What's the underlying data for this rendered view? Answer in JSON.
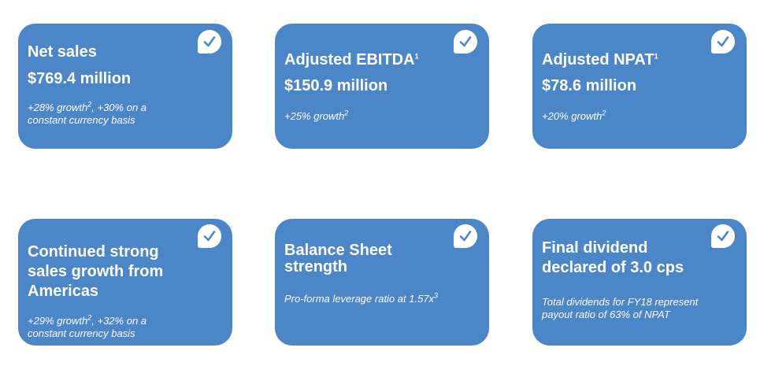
{
  "cards": [
    {
      "title": "Net sales",
      "value": "$769.4 million",
      "note_line1": "+28% growth",
      "note_line1_sup": "2",
      "note_line1_tail": ", +30% on a",
      "note_line2": "constant currency basis"
    },
    {
      "title": "Adjusted EBITDA",
      "title_sup": "1",
      "value": "$150.9 million",
      "note_line1": "+25% growth",
      "note_line1_sup": "2"
    },
    {
      "title": "Adjusted NPAT",
      "title_sup": "1",
      "value": "$78.6 million",
      "note_line1": "+20% growth",
      "note_line1_sup": "2"
    },
    {
      "title_line1": "Continued strong",
      "title_line2": "sales growth from",
      "title_line3": "Americas",
      "note_line1": "+29% growth",
      "note_line1_sup": "2",
      "note_line1_tail": ", +32% on a",
      "note_line2": "constant currency basis"
    },
    {
      "title_line1": "Balance Sheet",
      "title_line2": "strength",
      "note_line1": "Pro-forma leverage ratio at 1.57x",
      "note_line1_sup": "3"
    },
    {
      "title_line1": "Final dividend",
      "title_line2": "declared of 3.0 cps",
      "note_line1": "Total dividends for FY18 represent",
      "note_line2": "payout ratio of  63% of NPAT"
    }
  ],
  "icon": "checkmark-icon",
  "colors": {
    "card": "#4a86c8",
    "check_mark": "#4a86c8",
    "text": "#ffffff"
  }
}
